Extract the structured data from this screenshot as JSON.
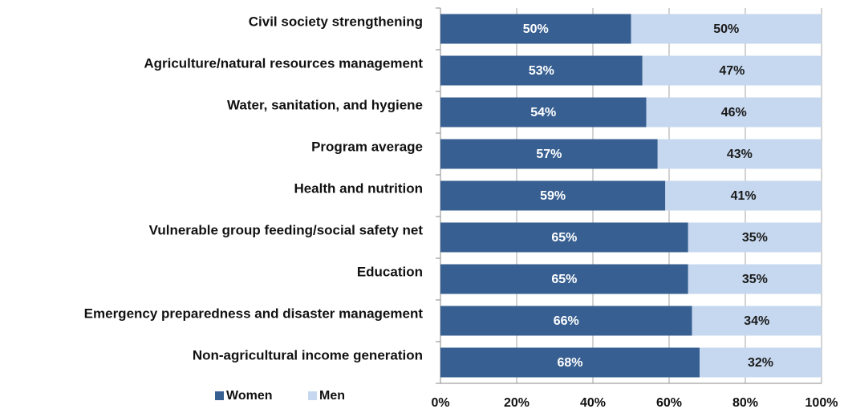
{
  "chart_data": {
    "type": "stacked_barh",
    "categories": [
      "Civil society strengthening",
      "Agriculture/natural resources management",
      "Water, sanitation, and hygiene",
      "Program average",
      "Health and nutrition",
      "Vulnerable group feeding/social safety net",
      "Education",
      "Emergency preparedness and disaster management",
      "Non-agricultural income generation"
    ],
    "series": [
      {
        "name": "Women",
        "color": "#375f91",
        "label_color": "#ffffff",
        "values": [
          50,
          53,
          54,
          57,
          59,
          65,
          65,
          66,
          68
        ],
        "value_labels": [
          "50%",
          "53%",
          "54%",
          "57%",
          "59%",
          "65%",
          "65%",
          "66%",
          "68%"
        ]
      },
      {
        "name": "Men",
        "color": "#c6d8ef",
        "label_color": "#1a1a1a",
        "values": [
          50,
          47,
          46,
          43,
          41,
          35,
          35,
          34,
          32
        ],
        "value_labels": [
          "50%",
          "47%",
          "46%",
          "43%",
          "41%",
          "35%",
          "35%",
          "34%",
          "32%"
        ]
      }
    ],
    "xlim": [
      0,
      100
    ],
    "xticks": [
      {
        "value": 0,
        "label": "0%"
      },
      {
        "value": 20,
        "label": "20%"
      },
      {
        "value": 40,
        "label": "40%"
      },
      {
        "value": 60,
        "label": "60%"
      },
      {
        "value": 80,
        "label": "80%"
      },
      {
        "value": 100,
        "label": "100%"
      }
    ],
    "grid": true,
    "legend": "bottom-left"
  }
}
